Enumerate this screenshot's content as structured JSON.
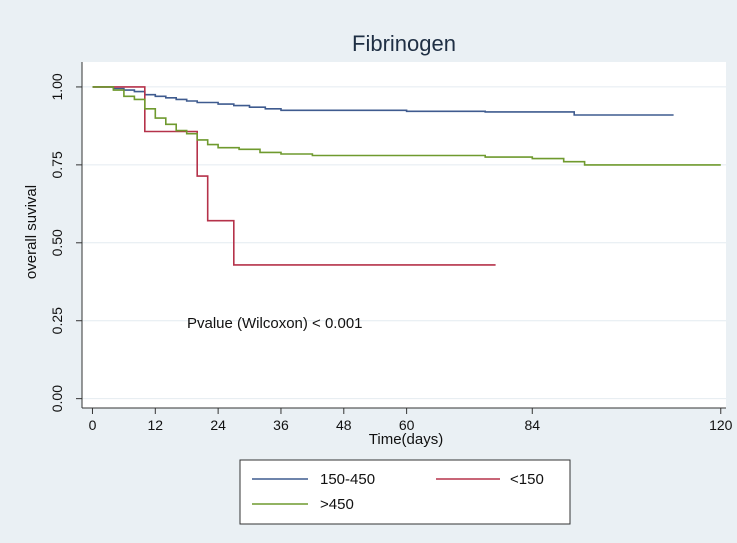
{
  "chart_data": {
    "type": "line",
    "title": "Fibrinogen",
    "xlabel": "Time(days)",
    "ylabel": "overall suvival",
    "xlim": [
      -2,
      121
    ],
    "ylim": [
      -0.03,
      1.08
    ],
    "x_ticks": [
      0,
      12,
      24,
      36,
      48,
      60,
      84,
      120
    ],
    "y_ticks": [
      0.0,
      0.25,
      0.5,
      0.75,
      1.0
    ],
    "x_tick_labels": [
      "0",
      "12",
      "24",
      "36",
      "48",
      "60",
      "84",
      "120"
    ],
    "y_tick_labels": [
      "0.00",
      "0.25",
      "0.50",
      "0.75",
      "1.00"
    ],
    "grid": true,
    "legend_position": "bottom",
    "annotation": "Pvalue (Wilcoxon) < 0.001",
    "colors": {
      "background": "#eaf0f4",
      "plot_background": "#ffffff",
      "grid": "#e4ebf0"
    },
    "series": [
      {
        "name": "150-450",
        "color": "#3f5b8f",
        "step": true,
        "points": [
          [
            0,
            1.0
          ],
          [
            4,
            0.995
          ],
          [
            6,
            0.99
          ],
          [
            8,
            0.985
          ],
          [
            10,
            0.975
          ],
          [
            12,
            0.97
          ],
          [
            14,
            0.965
          ],
          [
            16,
            0.96
          ],
          [
            18,
            0.955
          ],
          [
            20,
            0.95
          ],
          [
            24,
            0.945
          ],
          [
            27,
            0.94
          ],
          [
            30,
            0.935
          ],
          [
            33,
            0.93
          ],
          [
            36,
            0.925
          ],
          [
            48,
            0.925
          ],
          [
            60,
            0.922
          ],
          [
            75,
            0.92
          ],
          [
            92,
            0.91
          ],
          [
            111,
            0.91
          ]
        ]
      },
      {
        "name": "<150",
        "color": "#b5324a",
        "step": true,
        "points": [
          [
            0,
            1.0
          ],
          [
            10,
            0.857
          ],
          [
            20,
            0.714
          ],
          [
            22,
            0.571
          ],
          [
            27,
            0.429
          ],
          [
            77,
            0.429
          ]
        ]
      },
      {
        "name": ">450",
        "color": "#6f9a2e",
        "step": true,
        "points": [
          [
            0,
            1.0
          ],
          [
            4,
            0.99
          ],
          [
            6,
            0.97
          ],
          [
            8,
            0.96
          ],
          [
            10,
            0.93
          ],
          [
            12,
            0.9
          ],
          [
            14,
            0.88
          ],
          [
            16,
            0.86
          ],
          [
            18,
            0.85
          ],
          [
            20,
            0.83
          ],
          [
            22,
            0.815
          ],
          [
            24,
            0.805
          ],
          [
            28,
            0.8
          ],
          [
            32,
            0.79
          ],
          [
            36,
            0.785
          ],
          [
            42,
            0.78
          ],
          [
            60,
            0.78
          ],
          [
            75,
            0.775
          ],
          [
            84,
            0.77
          ],
          [
            90,
            0.76
          ],
          [
            94,
            0.75
          ],
          [
            120,
            0.75
          ]
        ]
      }
    ]
  }
}
